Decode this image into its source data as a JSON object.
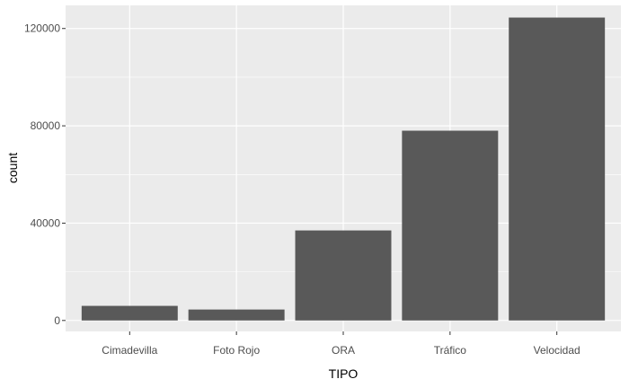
{
  "chart_data": {
    "type": "bar",
    "xlabel": "TIPO",
    "ylabel": "count",
    "categories": [
      "Cimadevilla",
      "Foto Rojo",
      "ORA",
      "Tráfico",
      "Velocidad"
    ],
    "values": [
      6000,
      4500,
      37000,
      78000,
      124500
    ],
    "ylim": [
      -4500,
      129500
    ],
    "yticks": [
      0,
      40000,
      80000,
      120000
    ],
    "ytick_labels": [
      "0",
      "40000",
      "80000",
      "120000"
    ],
    "grid": true,
    "colors": {
      "panel": "#ebebeb",
      "grid_major": "#ffffff",
      "bar": "#595959",
      "tick_text": "#4d4d4d",
      "title_text": "#000000"
    }
  }
}
